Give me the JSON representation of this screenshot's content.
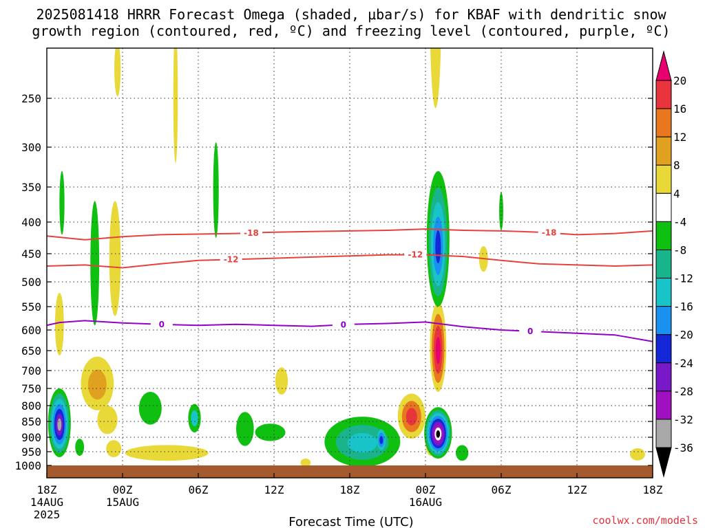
{
  "title_line1": "2025081418 HRRR Forecast Omega (shaded, μbar/s) for KBAF with dendritic snow",
  "title_line2": "growth region (contoured, red, ºC) and freezing level (contoured, purple, ºC)",
  "credit": "coolwx.com/models",
  "chart_data": {
    "type": "heatmap",
    "xlabel": "Forecast Time (UTC)",
    "ylabel": "",
    "x_ticks": [
      {
        "label": "18Z",
        "sub": [
          "14AUG",
          "2025"
        ],
        "hour": 0
      },
      {
        "label": "00Z",
        "sub": [
          "15AUG"
        ],
        "hour": 6
      },
      {
        "label": "06Z",
        "sub": [],
        "hour": 12
      },
      {
        "label": "12Z",
        "sub": [],
        "hour": 18
      },
      {
        "label": "18Z",
        "sub": [],
        "hour": 24
      },
      {
        "label": "00Z",
        "sub": [
          "16AUG"
        ],
        "hour": 30
      },
      {
        "label": "06Z",
        "sub": [],
        "hour": 36
      },
      {
        "label": "12Z",
        "sub": [],
        "hour": 42
      },
      {
        "label": "18Z",
        "sub": [],
        "hour": 48
      }
    ],
    "y_ticks": [
      250,
      300,
      350,
      400,
      450,
      500,
      550,
      600,
      650,
      700,
      750,
      800,
      850,
      900,
      950,
      1000
    ],
    "colorbar": {
      "labels": [
        "20",
        "16",
        "12",
        "8",
        "4",
        "-4",
        "-8",
        "-12",
        "-16",
        "-20",
        "-24",
        "-28",
        "-32",
        "-36"
      ],
      "colors": [
        "#e8006e",
        "#e8343c",
        "#e87820",
        "#e0a020",
        "#e8d838",
        "#ffffff",
        "#10c010",
        "#1ab48c",
        "#18c4c8",
        "#1a90f0",
        "#1428d8",
        "#7818c8",
        "#a010c0",
        "#a8a8a8",
        "#000000"
      ]
    },
    "contours": [
      {
        "name": "-18",
        "color": "#e8403c",
        "label": "-18",
        "x": [
          0,
          3,
          6,
          9,
          12,
          15,
          18,
          21,
          24,
          27,
          30,
          33,
          36,
          39,
          42,
          45,
          48
        ],
        "y": [
          422,
          428,
          423,
          420,
          419,
          418,
          416,
          415,
          414,
          413,
          411,
          413,
          414,
          416,
          420,
          418,
          414
        ],
        "label_hours": [
          16.2,
          39.8
        ]
      },
      {
        "name": "-12",
        "color": "#e8403c",
        "label": "-12",
        "x": [
          0,
          3,
          6,
          9,
          12,
          15,
          18,
          21,
          24,
          27,
          30,
          33,
          36,
          39,
          42,
          45,
          48
        ],
        "y": [
          472,
          470,
          475,
          468,
          462,
          460,
          458,
          456,
          454,
          452,
          452,
          455,
          462,
          468,
          470,
          472,
          470
        ],
        "label_hours": [
          14.6,
          29.2
        ]
      },
      {
        "name": "0",
        "color": "#9000c8",
        "label": "0",
        "x": [
          0,
          1,
          3,
          6,
          9,
          12,
          15,
          18,
          21,
          24,
          27,
          30,
          33,
          36,
          39,
          42,
          45,
          48
        ],
        "y": [
          590,
          584,
          580,
          585,
          588,
          590,
          588,
          590,
          592,
          588,
          586,
          583,
          593,
          600,
          604,
          608,
          612,
          628
        ],
        "label_hours": [
          9.1,
          23.5,
          38.3
        ]
      }
    ],
    "omega_blobs": [
      {
        "h": 5.6,
        "p": 220,
        "rh": 0.25,
        "rp": 28,
        "levels": [
          "#e8d838"
        ]
      },
      {
        "h": 10.2,
        "p": 250,
        "rh": 0.18,
        "rp": 70,
        "levels": [
          "#e8d838"
        ]
      },
      {
        "h": 30.8,
        "p": 160,
        "rh": 0.45,
        "rp": 100,
        "levels": [
          "#e8d838"
        ]
      },
      {
        "h": 34.6,
        "p": 460,
        "rh": 0.35,
        "rp": 22,
        "levels": [
          "#e8d838"
        ]
      },
      {
        "h": 1.0,
        "p": 592,
        "rh": 0.35,
        "rp": 70,
        "levels": [
          "#e8d838"
        ]
      },
      {
        "h": 5.4,
        "p": 470,
        "rh": 0.45,
        "rp": 100,
        "levels": [
          "#e8d838"
        ]
      },
      {
        "h": 4.0,
        "p": 740,
        "rh": 1.3,
        "rp": 75,
        "levels": [
          "#e8d838",
          "#e0a020"
        ]
      },
      {
        "h": 4.8,
        "p": 845,
        "rh": 0.8,
        "rp": 45,
        "levels": [
          "#e8d838"
        ]
      },
      {
        "h": 5.3,
        "p": 940,
        "rh": 0.6,
        "rp": 30,
        "levels": [
          "#e8d838"
        ]
      },
      {
        "h": 9.5,
        "p": 955,
        "rh": 3.3,
        "rp": 28,
        "levels": [
          "#e8d838"
        ]
      },
      {
        "h": 18.6,
        "p": 730,
        "rh": 0.5,
        "rp": 38,
        "levels": [
          "#e8d838"
        ]
      },
      {
        "h": 20.5,
        "p": 990,
        "rh": 0.4,
        "rp": 15,
        "levels": [
          "#e8d838"
        ]
      },
      {
        "h": 28.9,
        "p": 835,
        "rh": 1.1,
        "rp": 70,
        "levels": [
          "#e8d838",
          "#e87820",
          "#e8343c"
        ]
      },
      {
        "h": 30.4,
        "p": 920,
        "rh": 0.4,
        "rp": 45,
        "levels": [
          "#e8d838"
        ]
      },
      {
        "h": 31.0,
        "p": 650,
        "rh": 0.65,
        "rp": 110,
        "levels": [
          "#e8d838",
          "#e87820",
          "#e8343c",
          "#e8006e"
        ]
      },
      {
        "h": 46.8,
        "p": 960,
        "rh": 0.6,
        "rp": 22,
        "levels": [
          "#e8d838"
        ]
      },
      {
        "h": 1.2,
        "p": 375,
        "rh": 0.2,
        "rp": 45,
        "levels": [
          "#10c010"
        ]
      },
      {
        "h": 3.8,
        "p": 480,
        "rh": 0.35,
        "rp": 110,
        "levels": [
          "#10c010"
        ]
      },
      {
        "h": 13.4,
        "p": 360,
        "rh": 0.22,
        "rp": 65,
        "levels": [
          "#10c010"
        ]
      },
      {
        "h": 36.0,
        "p": 385,
        "rh": 0.16,
        "rp": 28,
        "levels": [
          "#10c010"
        ]
      },
      {
        "h": 1.0,
        "p": 860,
        "rh": 0.9,
        "rp": 110,
        "levels": [
          "#10c010",
          "#1ab48c",
          "#18c4c8",
          "#1a90f0",
          "#1428d8",
          "#7818c8",
          "#a8a8a8"
        ]
      },
      {
        "h": 2.6,
        "p": 935,
        "rh": 0.35,
        "rp": 30,
        "levels": [
          "#10c010"
        ]
      },
      {
        "h": 8.2,
        "p": 810,
        "rh": 0.9,
        "rp": 50,
        "levels": [
          "#10c010"
        ]
      },
      {
        "h": 11.7,
        "p": 840,
        "rh": 0.5,
        "rp": 45,
        "levels": [
          "#10c010",
          "#18c4c8"
        ]
      },
      {
        "h": 15.7,
        "p": 875,
        "rh": 0.7,
        "rp": 55,
        "levels": [
          "#10c010"
        ]
      },
      {
        "h": 17.7,
        "p": 885,
        "rh": 1.2,
        "rp": 28,
        "levels": [
          "#10c010"
        ]
      },
      {
        "h": 25.0,
        "p": 920,
        "rh": 3.0,
        "rp": 85,
        "levels": [
          "#10c010",
          "#1ab48c",
          "#18c4c8"
        ]
      },
      {
        "h": 26.5,
        "p": 910,
        "rh": 0.35,
        "rp": 35,
        "levels": [
          "#18c4c8",
          "#1a90f0",
          "#1428d8"
        ]
      },
      {
        "h": 31.0,
        "p": 440,
        "rh": 0.9,
        "rp": 110,
        "levels": [
          "#10c010",
          "#1ab48c",
          "#18c4c8",
          "#1a90f0",
          "#1428d8"
        ]
      },
      {
        "h": 31.0,
        "p": 890,
        "rh": 1.1,
        "rp": 85,
        "levels": [
          "#10c010",
          "#1ab48c",
          "#18c4c8",
          "#1a90f0",
          "#1428d8",
          "#7818c8",
          "#a010c0",
          "#ffffff",
          "#000000"
        ]
      },
      {
        "h": 32.9,
        "p": 955,
        "rh": 0.5,
        "rp": 28,
        "levels": [
          "#10c010"
        ]
      }
    ]
  }
}
